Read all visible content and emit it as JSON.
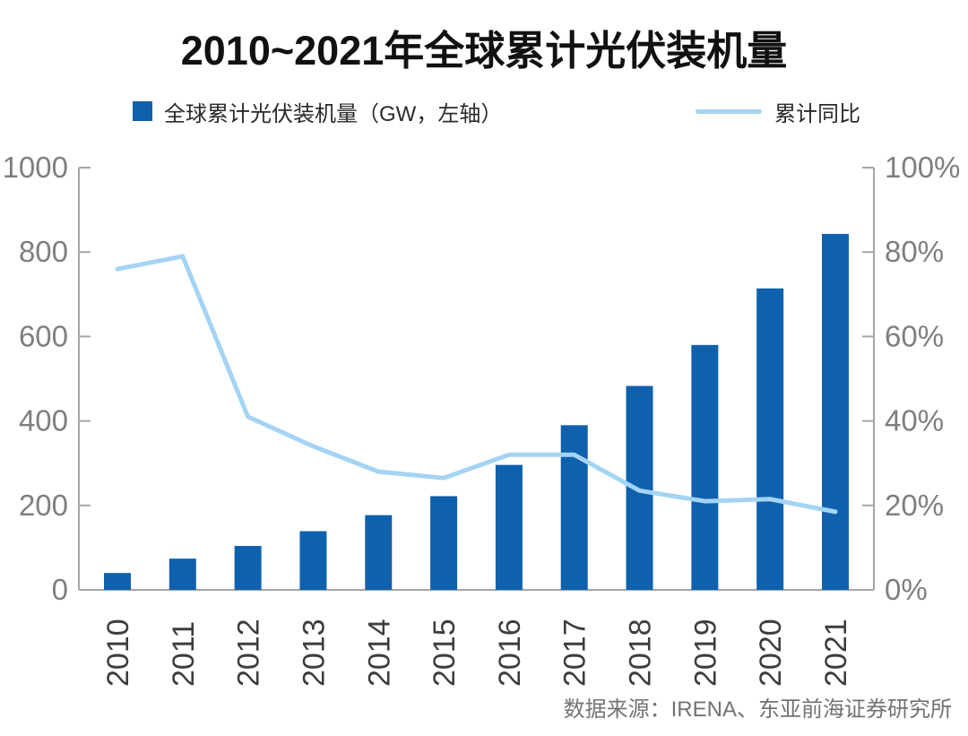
{
  "title": "2010~2021年全球累计光伏装机量",
  "legend": {
    "bar": {
      "label": "全球累计光伏装机量（GW，左轴）",
      "color": "#0f61ad"
    },
    "line": {
      "label": "累计同比",
      "color": "#a3d4f4"
    }
  },
  "source": "数据来源：IRENA、东亚前海证券研究所",
  "colors": {
    "bar": "#0f61ad",
    "line": "#a3d4f4",
    "axis_line": "#a6a6a6",
    "y_tick_label": "#7f7f7f",
    "x_tick_label": "#3d3d3d",
    "title": "#111111",
    "source": "#737373"
  },
  "chart_data": {
    "type": "bar",
    "subtype": "combo-bar-line-dual-axis",
    "title": "2010~2021年全球累计光伏装机量",
    "categories": [
      "2010",
      "2011",
      "2012",
      "2013",
      "2014",
      "2015",
      "2016",
      "2017",
      "2018",
      "2019",
      "2020",
      "2021"
    ],
    "series": [
      {
        "name": "全球累计光伏装机量（GW，左轴）",
        "type": "bar",
        "axis": "left",
        "unit": "GW",
        "color": "#0f61ad",
        "values": [
          40,
          74,
          104,
          139,
          177,
          222,
          296,
          390,
          483,
          580,
          714,
          843
        ]
      },
      {
        "name": "累计同比",
        "type": "line",
        "axis": "right",
        "unit": "%",
        "color": "#a3d4f4",
        "values": [
          76,
          79,
          41,
          34,
          28,
          26.5,
          32,
          32,
          23.5,
          21,
          21.5,
          18.5
        ]
      }
    ],
    "left_axis": {
      "min": 0,
      "max": 1000,
      "tick_values": [
        0,
        200,
        400,
        600,
        800,
        1000
      ],
      "tick_labels": [
        "0",
        "200",
        "400",
        "600",
        "800",
        "1000"
      ]
    },
    "right_axis": {
      "min": 0,
      "max": 100,
      "tick_values": [
        0,
        20,
        40,
        60,
        80,
        100
      ],
      "tick_labels": [
        "0%",
        "20%",
        "40%",
        "60%",
        "80%",
        "100%"
      ]
    },
    "grid": false,
    "legend_position": "top"
  }
}
